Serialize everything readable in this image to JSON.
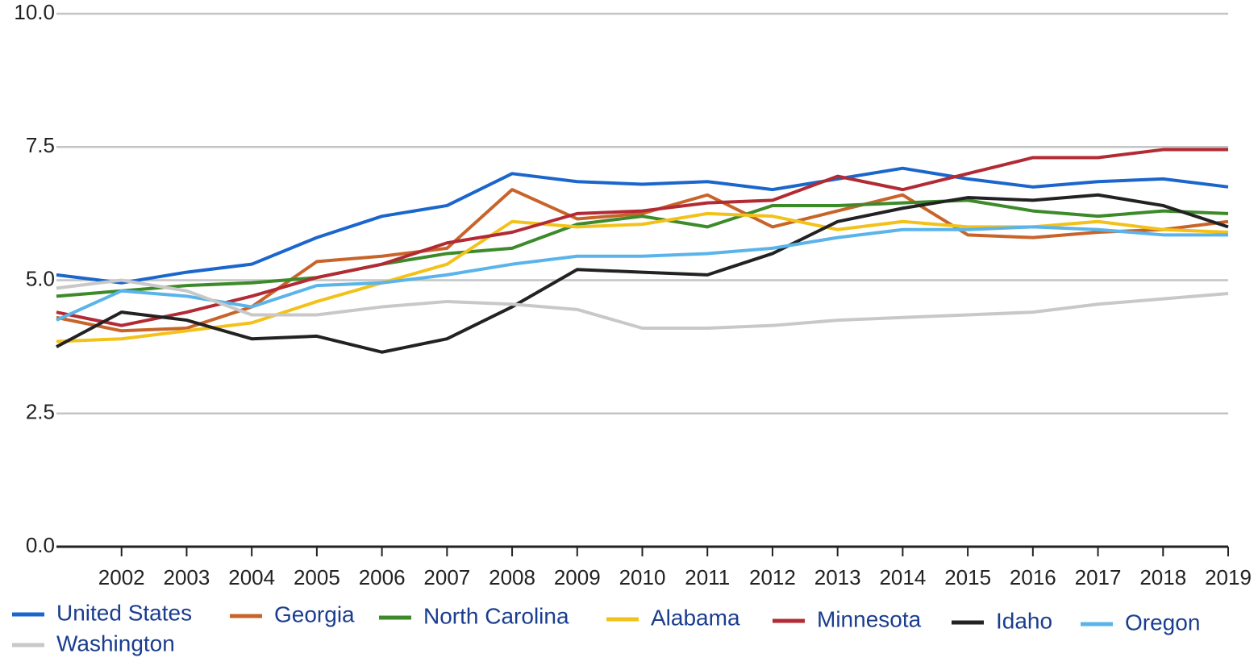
{
  "chart_data": {
    "type": "line",
    "x": [
      2001,
      2002,
      2003,
      2004,
      2005,
      2006,
      2007,
      2008,
      2009,
      2010,
      2011,
      2012,
      2013,
      2014,
      2015,
      2016,
      2017,
      2018,
      2019
    ],
    "xlim": [
      2001,
      2019
    ],
    "xticks": [
      2002,
      2003,
      2004,
      2005,
      2006,
      2007,
      2008,
      2009,
      2010,
      2011,
      2012,
      2013,
      2014,
      2015,
      2016,
      2017,
      2018,
      2019
    ],
    "ylim": [
      0,
      10
    ],
    "yticks": [
      {
        "value": 0,
        "label": "0.0"
      },
      2.5,
      {
        "value": 5,
        "label": "5.0"
      },
      7.5,
      {
        "value": 10,
        "label": "10.0"
      }
    ],
    "grid": true,
    "series": [
      {
        "name": "United States",
        "color": "#1a66cc",
        "values": [
          5.1,
          4.95,
          5.15,
          5.3,
          5.8,
          6.2,
          6.4,
          7.0,
          6.85,
          6.8,
          6.85,
          6.7,
          6.9,
          7.1,
          6.9,
          6.75,
          6.85,
          6.9,
          6.75
        ]
      },
      {
        "name": "Georgia",
        "color": "#c8642a",
        "values": [
          4.3,
          4.05,
          4.1,
          4.5,
          5.35,
          5.45,
          5.6,
          6.7,
          6.15,
          6.25,
          6.6,
          6.0,
          6.3,
          6.6,
          5.85,
          5.8,
          5.9,
          5.95,
          6.1
        ]
      },
      {
        "name": "North Carolina",
        "color": "#3d8a2a",
        "values": [
          4.7,
          4.8,
          4.9,
          4.95,
          5.05,
          5.3,
          5.5,
          5.6,
          6.05,
          6.2,
          6.0,
          6.4,
          6.4,
          6.45,
          6.5,
          6.3,
          6.2,
          6.3,
          6.25
        ]
      },
      {
        "name": "Alabama",
        "color": "#f2c21b",
        "values": [
          3.85,
          3.9,
          4.05,
          4.2,
          4.6,
          4.95,
          5.3,
          6.1,
          6.0,
          6.05,
          6.25,
          6.2,
          5.95,
          6.1,
          6.0,
          6.0,
          6.1,
          5.95,
          5.9
        ]
      },
      {
        "name": "Minnesota",
        "color": "#b22a33",
        "values": [
          4.4,
          4.15,
          4.4,
          4.7,
          5.05,
          5.3,
          5.7,
          5.9,
          6.25,
          6.3,
          6.45,
          6.5,
          6.95,
          6.7,
          7.0,
          7.3,
          7.3,
          7.45,
          7.45
        ]
      },
      {
        "name": "Idaho",
        "color": "#222222",
        "values": [
          3.75,
          4.4,
          4.25,
          3.9,
          3.95,
          3.65,
          3.9,
          4.5,
          5.2,
          5.15,
          5.1,
          5.5,
          6.1,
          6.35,
          6.55,
          6.5,
          6.6,
          6.4,
          6.0
        ]
      },
      {
        "name": "Oregon",
        "color": "#5ab4ea",
        "values": [
          4.25,
          4.8,
          4.7,
          4.5,
          4.9,
          4.95,
          5.1,
          5.3,
          5.45,
          5.45,
          5.5,
          5.6,
          5.8,
          5.95,
          5.95,
          6.0,
          5.95,
          5.85,
          5.85
        ]
      },
      {
        "name": "Washington",
        "color": "#c8c8c8",
        "values": [
          4.85,
          5.0,
          4.8,
          4.35,
          4.35,
          4.5,
          4.6,
          4.55,
          4.45,
          4.1,
          4.1,
          4.15,
          4.25,
          4.3,
          4.35,
          4.4,
          4.55,
          4.65,
          4.75
        ]
      }
    ]
  }
}
